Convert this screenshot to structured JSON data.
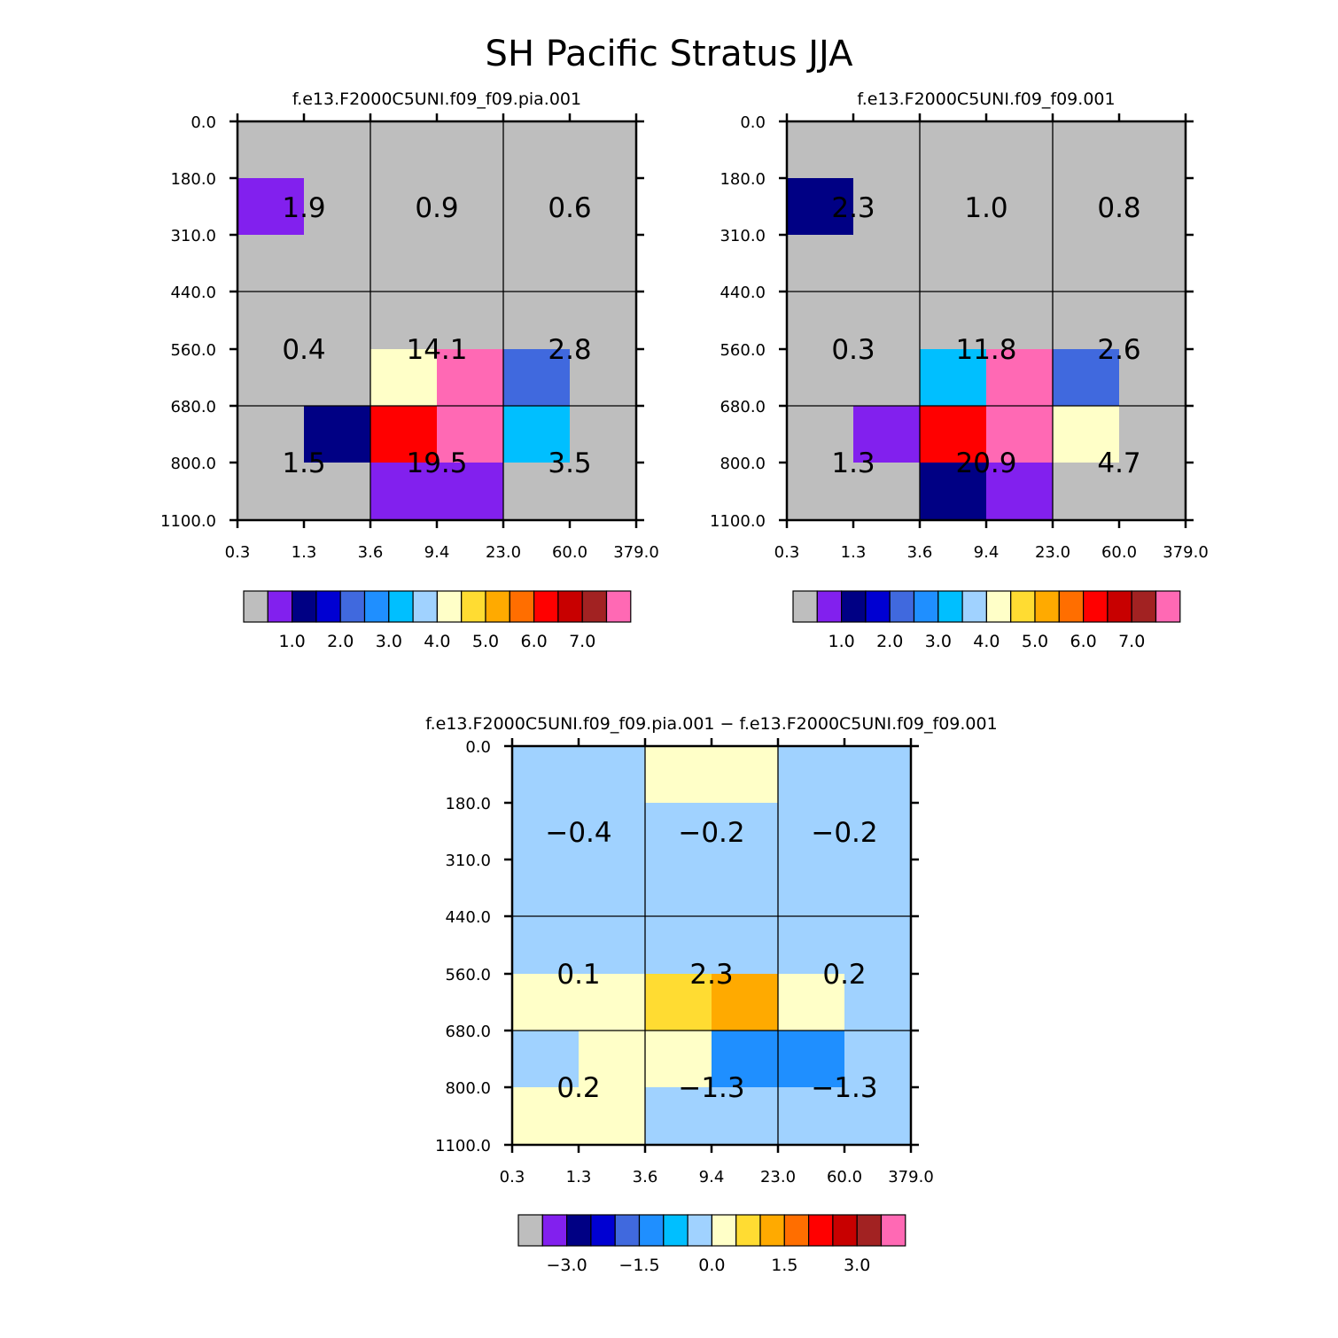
{
  "figure": {
    "title": "SH Pacific Stratus JJA"
  },
  "palette": [
    "#BEBEBE",
    "#8220EE",
    "#000084",
    "#0000D2",
    "#4069DE",
    "#1F8FFF",
    "#00BFFF",
    "#A0D2FF",
    "#FFFFC8",
    "#FFDC32",
    "#FFAA00",
    "#FF6E00",
    "#FF0000",
    "#C80000",
    "#A22222",
    "#FF69B4"
  ],
  "chart_data": [
    {
      "type": "heatmap",
      "id": "panel-a",
      "title": "f.e13.F2000C5UNI.f09_f09.pia.001",
      "x_ticks": [
        "0.3",
        "1.3",
        "3.6",
        "9.4",
        "23.0",
        "60.0",
        "379.0"
      ],
      "y_ticks": [
        "0.0",
        "180.0",
        "310.0",
        "440.0",
        "560.0",
        "680.0",
        "800.0",
        "1100.0"
      ],
      "grid": [
        [
          0,
          0,
          0,
          0,
          0,
          0
        ],
        [
          1,
          0,
          0,
          0,
          0,
          0
        ],
        [
          0,
          0,
          0,
          0,
          0,
          0
        ],
        [
          0,
          0,
          0,
          0,
          0,
          0
        ],
        [
          0,
          0,
          8,
          15,
          4,
          0
        ],
        [
          0,
          2,
          12,
          15,
          6,
          0
        ],
        [
          0,
          0,
          1,
          1,
          0,
          0
        ]
      ],
      "cell_labels": [
        [
          "1.9",
          "0.9",
          "0.6"
        ],
        [
          "0.4",
          "14.1",
          "2.8"
        ],
        [
          "1.5",
          "19.5",
          "3.5"
        ]
      ],
      "colorbar": {
        "labels": [
          "1.0",
          "2.0",
          "3.0",
          "4.0",
          "5.0",
          "6.0",
          "7.0"
        ],
        "offset": 1,
        "step": 2
      }
    },
    {
      "type": "heatmap",
      "id": "panel-b",
      "title": "f.e13.F2000C5UNI.f09_f09.001",
      "x_ticks": [
        "0.3",
        "1.3",
        "3.6",
        "9.4",
        "23.0",
        "60.0",
        "379.0"
      ],
      "y_ticks": [
        "0.0",
        "180.0",
        "310.0",
        "440.0",
        "560.0",
        "680.0",
        "800.0",
        "1100.0"
      ],
      "grid": [
        [
          0,
          0,
          0,
          0,
          0,
          0
        ],
        [
          2,
          0,
          0,
          0,
          0,
          0
        ],
        [
          0,
          0,
          0,
          0,
          0,
          0
        ],
        [
          0,
          0,
          0,
          0,
          0,
          0
        ],
        [
          0,
          0,
          6,
          15,
          4,
          0
        ],
        [
          0,
          1,
          12,
          15,
          8,
          0
        ],
        [
          0,
          0,
          2,
          1,
          0,
          0
        ]
      ],
      "cell_labels": [
        [
          "2.3",
          "1.0",
          "0.8"
        ],
        [
          "0.3",
          "11.8",
          "2.6"
        ],
        [
          "1.3",
          "20.9",
          "4.7"
        ]
      ],
      "colorbar": {
        "labels": [
          "1.0",
          "2.0",
          "3.0",
          "4.0",
          "5.0",
          "6.0",
          "7.0"
        ],
        "offset": 1,
        "step": 2
      }
    },
    {
      "type": "heatmap",
      "id": "panel-diff",
      "title": "f.e13.F2000C5UNI.f09_f09.pia.001 − f.e13.F2000C5UNI.f09_f09.001",
      "x_ticks": [
        "0.3",
        "1.3",
        "3.6",
        "9.4",
        "23.0",
        "60.0",
        "379.0"
      ],
      "y_ticks": [
        "0.0",
        "180.0",
        "310.0",
        "440.0",
        "560.0",
        "680.0",
        "800.0",
        "1100.0"
      ],
      "grid": [
        [
          7,
          7,
          8,
          8,
          7,
          7
        ],
        [
          7,
          7,
          7,
          7,
          7,
          7
        ],
        [
          7,
          7,
          7,
          7,
          7,
          7
        ],
        [
          7,
          7,
          7,
          7,
          7,
          7
        ],
        [
          8,
          8,
          9,
          10,
          8,
          7
        ],
        [
          7,
          8,
          8,
          5,
          5,
          7
        ],
        [
          8,
          8,
          7,
          7,
          7,
          7
        ]
      ],
      "cell_labels": [
        [
          "−0.4",
          "−0.2",
          "−0.2"
        ],
        [
          "0.1",
          "2.3",
          "0.2"
        ],
        [
          "0.2",
          "−1.3",
          "−1.3"
        ]
      ],
      "colorbar": {
        "labels": [
          "−3.0",
          "−1.5",
          "0.0",
          "1.5",
          "3.0"
        ],
        "offset": 1,
        "step": 3
      }
    }
  ]
}
